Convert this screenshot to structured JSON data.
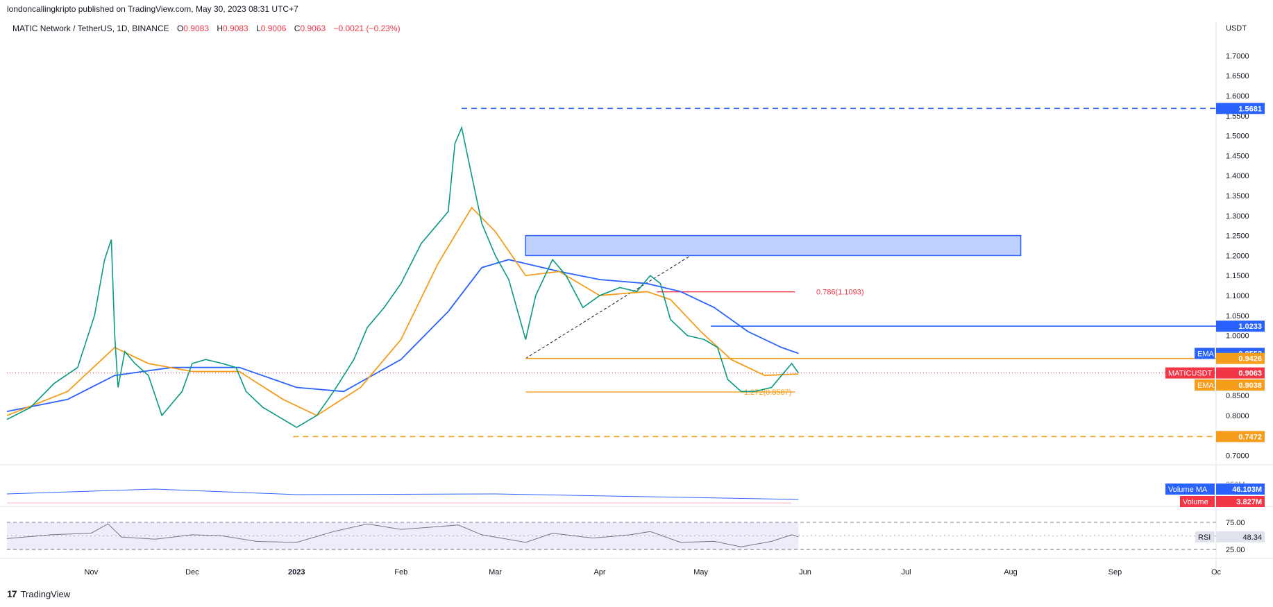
{
  "header": {
    "published": "londoncallingkripto published on TradingView.com, May 30, 2023 08:31 UTC+7",
    "symbol": "MATIC Network / TetherUS, 1D, BINANCE",
    "o_label": "O",
    "o": "0.9083",
    "h_label": "H",
    "h": "0.9083",
    "l_label": "L",
    "l": "0.9006",
    "c_label": "C",
    "c": "0.9063",
    "change": "−0.0021 (−0.23%)"
  },
  "footer": {
    "brand": "TradingView",
    "logo": "17"
  },
  "chart_data": {
    "type": "line",
    "title": "MATIC Network / TetherUS, 1D, BINANCE",
    "currency": "USDT",
    "ylim": [
      0.68,
      1.77
    ],
    "xlim": [
      "2022-10-07",
      "2023-10-01"
    ],
    "y_ticks": [
      "0.7000",
      "0.7500",
      "0.8000",
      "0.8500",
      "0.9000",
      "0.9500",
      "1.0000",
      "1.0500",
      "1.1000",
      "1.1500",
      "1.2000",
      "1.2500",
      "1.3000",
      "1.3500",
      "1.4000",
      "1.4500",
      "1.5000",
      "1.5500",
      "1.6000",
      "1.6500",
      "1.7000"
    ],
    "x_ticks": [
      {
        "label": "Nov",
        "date": "2022-11-01"
      },
      {
        "label": "Dec",
        "date": "2022-12-01"
      },
      {
        "label": "2023",
        "date": "2023-01-01",
        "bold": true
      },
      {
        "label": "Feb",
        "date": "2023-02-01"
      },
      {
        "label": "Mar",
        "date": "2023-03-01"
      },
      {
        "label": "Apr",
        "date": "2023-04-01"
      },
      {
        "label": "May",
        "date": "2023-05-01"
      },
      {
        "label": "Jun",
        "date": "2023-06-01"
      },
      {
        "label": "Jul",
        "date": "2023-07-01"
      },
      {
        "label": "Aug",
        "date": "2023-08-01"
      },
      {
        "label": "Sep",
        "date": "2023-09-01"
      },
      {
        "label": "Oc",
        "date": "2023-10-01"
      }
    ],
    "price_path": [
      [
        "2022-10-07",
        0.79
      ],
      [
        "2022-10-14",
        0.82
      ],
      [
        "2022-10-21",
        0.88
      ],
      [
        "2022-10-28",
        0.92
      ],
      [
        "2022-11-02",
        1.05
      ],
      [
        "2022-11-05",
        1.19
      ],
      [
        "2022-11-07",
        1.24
      ],
      [
        "2022-11-08",
        1.0
      ],
      [
        "2022-11-09",
        0.87
      ],
      [
        "2022-11-11",
        0.96
      ],
      [
        "2022-11-14",
        0.93
      ],
      [
        "2022-11-18",
        0.9
      ],
      [
        "2022-11-22",
        0.8
      ],
      [
        "2022-11-28",
        0.86
      ],
      [
        "2022-12-01",
        0.93
      ],
      [
        "2022-12-05",
        0.94
      ],
      [
        "2022-12-10",
        0.93
      ],
      [
        "2022-12-14",
        0.92
      ],
      [
        "2022-12-17",
        0.86
      ],
      [
        "2022-12-22",
        0.82
      ],
      [
        "2022-12-28",
        0.79
      ],
      [
        "2023-01-01",
        0.77
      ],
      [
        "2023-01-07",
        0.8
      ],
      [
        "2023-01-12",
        0.86
      ],
      [
        "2023-01-18",
        0.94
      ],
      [
        "2023-01-22",
        1.02
      ],
      [
        "2023-01-27",
        1.07
      ],
      [
        "2023-02-01",
        1.13
      ],
      [
        "2023-02-07",
        1.23
      ],
      [
        "2023-02-12",
        1.28
      ],
      [
        "2023-02-15",
        1.31
      ],
      [
        "2023-02-17",
        1.48
      ],
      [
        "2023-02-19",
        1.52
      ],
      [
        "2023-02-22",
        1.4
      ],
      [
        "2023-02-25",
        1.28
      ],
      [
        "2023-03-01",
        1.2
      ],
      [
        "2023-03-05",
        1.14
      ],
      [
        "2023-03-10",
        0.99
      ],
      [
        "2023-03-13",
        1.1
      ],
      [
        "2023-03-18",
        1.19
      ],
      [
        "2023-03-22",
        1.15
      ],
      [
        "2023-03-27",
        1.07
      ],
      [
        "2023-04-01",
        1.1
      ],
      [
        "2023-04-07",
        1.12
      ],
      [
        "2023-04-12",
        1.11
      ],
      [
        "2023-04-16",
        1.15
      ],
      [
        "2023-04-19",
        1.13
      ],
      [
        "2023-04-22",
        1.04
      ],
      [
        "2023-04-27",
        1.0
      ],
      [
        "2023-05-02",
        0.99
      ],
      [
        "2023-05-06",
        0.97
      ],
      [
        "2023-05-09",
        0.89
      ],
      [
        "2023-05-13",
        0.86
      ],
      [
        "2023-05-17",
        0.86
      ],
      [
        "2023-05-22",
        0.87
      ],
      [
        "2023-05-25",
        0.9
      ],
      [
        "2023-05-28",
        0.93
      ],
      [
        "2023-05-30",
        0.9063
      ]
    ],
    "series": [
      {
        "name": "EMA",
        "label_value": "0.9552",
        "color": "#2962ff",
        "values": [
          [
            "2022-10-07",
            0.81
          ],
          [
            "2022-10-25",
            0.84
          ],
          [
            "2022-11-08",
            0.9
          ],
          [
            "2022-11-25",
            0.92
          ],
          [
            "2022-12-15",
            0.92
          ],
          [
            "2023-01-01",
            0.87
          ],
          [
            "2023-01-15",
            0.86
          ],
          [
            "2023-02-01",
            0.94
          ],
          [
            "2023-02-15",
            1.06
          ],
          [
            "2023-02-25",
            1.17
          ],
          [
            "2023-03-05",
            1.19
          ],
          [
            "2023-03-20",
            1.16
          ],
          [
            "2023-04-01",
            1.14
          ],
          [
            "2023-04-15",
            1.13
          ],
          [
            "2023-04-25",
            1.11
          ],
          [
            "2023-05-05",
            1.07
          ],
          [
            "2023-05-15",
            1.01
          ],
          [
            "2023-05-25",
            0.97
          ],
          [
            "2023-05-30",
            0.9552
          ]
        ]
      },
      {
        "name": "EMA",
        "label_value": "0.9038",
        "color": "#f59c1a",
        "values": [
          [
            "2022-10-07",
            0.8
          ],
          [
            "2022-10-25",
            0.86
          ],
          [
            "2022-11-08",
            0.97
          ],
          [
            "2022-11-18",
            0.93
          ],
          [
            "2022-12-01",
            0.91
          ],
          [
            "2022-12-15",
            0.91
          ],
          [
            "2022-12-28",
            0.84
          ],
          [
            "2023-01-07",
            0.8
          ],
          [
            "2023-01-20",
            0.87
          ],
          [
            "2023-02-01",
            0.99
          ],
          [
            "2023-02-12",
            1.18
          ],
          [
            "2023-02-22",
            1.32
          ],
          [
            "2023-03-01",
            1.26
          ],
          [
            "2023-03-10",
            1.15
          ],
          [
            "2023-03-20",
            1.16
          ],
          [
            "2023-04-01",
            1.1
          ],
          [
            "2023-04-15",
            1.11
          ],
          [
            "2023-04-22",
            1.09
          ],
          [
            "2023-05-01",
            1.01
          ],
          [
            "2023-05-10",
            0.94
          ],
          [
            "2023-05-20",
            0.9
          ],
          [
            "2023-05-30",
            0.9038
          ]
        ]
      }
    ],
    "levels": [
      {
        "label": "1.5681",
        "value": 1.5681,
        "color": "#2962ff",
        "style": "dashed",
        "from": "2023-02-19"
      },
      {
        "label": "1.0233",
        "value": 1.0233,
        "color": "#2962ff",
        "style": "solid",
        "from": "2023-05-04"
      },
      {
        "label": "0.9426",
        "value": 0.9426,
        "color": "#f59c1a",
        "style": "solid",
        "from": "2023-03-10"
      },
      {
        "label": "0.7472",
        "value": 0.7472,
        "color": "#f59c1a",
        "style": "dashed",
        "from": "2022-12-31"
      }
    ],
    "fib": [
      {
        "label": "0.786(1.1093)",
        "value": 1.1093,
        "color": "#f23645",
        "from": "2023-04-18",
        "to": "2023-05-29"
      },
      {
        "label": "1.272(0.8587)",
        "value": 0.8587,
        "color": "#f59c1a",
        "from": "2023-03-10",
        "to": "2023-05-29"
      }
    ],
    "zone": {
      "from": "2023-03-10",
      "to": "2023-08-04",
      "low": 1.2,
      "high": 1.25,
      "color": "#2962ff"
    },
    "trendline": {
      "from": [
        "2023-03-10",
        0.9426
      ],
      "to": [
        "2023-04-28",
        1.2
      ]
    },
    "last_price": {
      "name": "MATICUSDT",
      "value": "0.9063",
      "color": "#f23645"
    },
    "volume": {
      "name": "Volume",
      "value": "3.827M",
      "ma_name": "Volume MA",
      "ma_value": "46.103M",
      "tick": "250M"
    },
    "rsi": {
      "name": "RSI",
      "value": "48.34",
      "upper": "75.00",
      "lower": "25.00",
      "values": [
        [
          "2022-10-07",
          45
        ],
        [
          "2022-10-20",
          52
        ],
        [
          "2022-11-01",
          55
        ],
        [
          "2022-11-06",
          72
        ],
        [
          "2022-11-10",
          48
        ],
        [
          "2022-11-20",
          44
        ],
        [
          "2022-12-01",
          52
        ],
        [
          "2022-12-10",
          50
        ],
        [
          "2022-12-20",
          40
        ],
        [
          "2023-01-01",
          38
        ],
        [
          "2023-01-12",
          58
        ],
        [
          "2023-01-22",
          72
        ],
        [
          "2023-02-01",
          62
        ],
        [
          "2023-02-10",
          66
        ],
        [
          "2023-02-18",
          70
        ],
        [
          "2023-02-25",
          52
        ],
        [
          "2023-03-10",
          38
        ],
        [
          "2023-03-18",
          55
        ],
        [
          "2023-03-30",
          46
        ],
        [
          "2023-04-10",
          52
        ],
        [
          "2023-04-16",
          58
        ],
        [
          "2023-04-25",
          38
        ],
        [
          "2023-05-05",
          40
        ],
        [
          "2023-05-13",
          30
        ],
        [
          "2023-05-22",
          40
        ],
        [
          "2023-05-28",
          52
        ],
        [
          "2023-05-30",
          48.34
        ]
      ]
    }
  }
}
